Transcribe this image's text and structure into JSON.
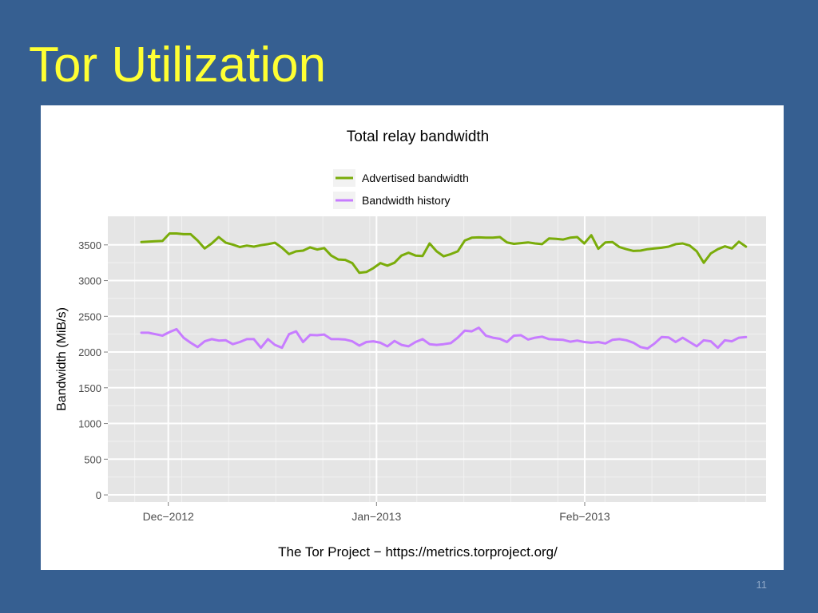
{
  "slide": {
    "title": "Tor Utilization",
    "page_number": "11"
  },
  "chart_data": {
    "type": "line",
    "title": "Total relay bandwidth",
    "xlabel": "",
    "ylabel": "Bandwidth (MiB/s)",
    "caption": "The Tor Project − https://metrics.torproject.org/",
    "x_start": "2012-11-27",
    "x_end": "2013-02-25",
    "x_range": [
      "2012-11-22",
      "2013-02-28"
    ],
    "x_ticks": [
      {
        "date": "2012-12-01",
        "label": "Dec−2012"
      },
      {
        "date": "2013-01-01",
        "label": "Jan−2013"
      },
      {
        "date": "2013-02-01",
        "label": "Feb−2013"
      }
    ],
    "ylim": [
      -100,
      3900
    ],
    "y_ticks": [
      0,
      500,
      1000,
      1500,
      2000,
      2500,
      3000,
      3500
    ],
    "legend_position": "top",
    "grid": true,
    "series": [
      {
        "name": "Advertised bandwidth",
        "color": "#7aac0a",
        "values": [
          3540,
          3545,
          3550,
          3555,
          3660,
          3660,
          3650,
          3650,
          3560,
          3450,
          3520,
          3610,
          3530,
          3505,
          3470,
          3490,
          3475,
          3495,
          3510,
          3530,
          3460,
          3370,
          3410,
          3420,
          3465,
          3435,
          3455,
          3350,
          3295,
          3290,
          3245,
          3110,
          3120,
          3175,
          3245,
          3210,
          3250,
          3350,
          3390,
          3350,
          3345,
          3520,
          3410,
          3340,
          3370,
          3410,
          3560,
          3600,
          3605,
          3600,
          3600,
          3610,
          3535,
          3515,
          3525,
          3535,
          3520,
          3510,
          3590,
          3585,
          3575,
          3600,
          3610,
          3520,
          3635,
          3445,
          3535,
          3540,
          3470,
          3440,
          3415,
          3420,
          3440,
          3450,
          3460,
          3475,
          3510,
          3520,
          3490,
          3410,
          3250,
          3380,
          3440,
          3480,
          3450,
          3545,
          3475
        ]
      },
      {
        "name": "Bandwidth history",
        "color": "#c77cff",
        "values": [
          2270,
          2270,
          2250,
          2230,
          2280,
          2320,
          2200,
          2130,
          2070,
          2150,
          2180,
          2160,
          2165,
          2110,
          2140,
          2180,
          2180,
          2060,
          2180,
          2100,
          2060,
          2250,
          2290,
          2140,
          2240,
          2235,
          2245,
          2180,
          2180,
          2175,
          2150,
          2090,
          2140,
          2150,
          2130,
          2080,
          2155,
          2100,
          2080,
          2140,
          2180,
          2110,
          2100,
          2110,
          2125,
          2200,
          2300,
          2290,
          2340,
          2230,
          2200,
          2185,
          2140,
          2230,
          2235,
          2175,
          2200,
          2215,
          2180,
          2175,
          2170,
          2145,
          2160,
          2140,
          2130,
          2140,
          2120,
          2170,
          2180,
          2165,
          2130,
          2070,
          2050,
          2120,
          2210,
          2205,
          2140,
          2200,
          2140,
          2080,
          2165,
          2150,
          2060,
          2165,
          2150,
          2200,
          2210
        ]
      }
    ]
  }
}
